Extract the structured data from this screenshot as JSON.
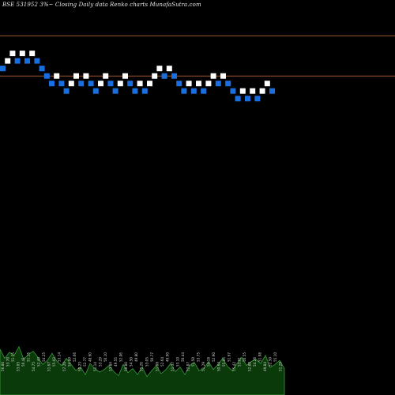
{
  "chart_data": {
    "type": "renko",
    "title": "BSE 531952  3%~  Closing Daily data  Renko  charts MunafaSutra.com",
    "ylim": [
      40.4,
      53.0
    ],
    "reference_lines": [
      52.2,
      50.6
    ],
    "colors": {
      "background": "#000000",
      "up_brick": "#ffffff",
      "down_brick": "#1a6fe0",
      "reference_line": "#a0522d",
      "volume_fill": "#0a3a0a",
      "volume_outline": "#3c9a3c",
      "volume_label": "#d0d0d0"
    },
    "bricks": [
      {
        "dir": "down",
        "value": 50.9
      },
      {
        "dir": "up",
        "value": 51.2
      },
      {
        "dir": "up",
        "value": 51.5
      },
      {
        "dir": "down",
        "value": 51.2
      },
      {
        "dir": "up",
        "value": 51.5
      },
      {
        "dir": "down",
        "value": 51.2
      },
      {
        "dir": "up",
        "value": 51.5
      },
      {
        "dir": "down",
        "value": 51.2
      },
      {
        "dir": "down",
        "value": 50.9
      },
      {
        "dir": "down",
        "value": 50.6
      },
      {
        "dir": "down",
        "value": 50.3
      },
      {
        "dir": "up",
        "value": 50.6
      },
      {
        "dir": "down",
        "value": 50.3
      },
      {
        "dir": "down",
        "value": 50.0
      },
      {
        "dir": "up",
        "value": 50.3
      },
      {
        "dir": "up",
        "value": 50.6
      },
      {
        "dir": "down",
        "value": 50.3
      },
      {
        "dir": "up",
        "value": 50.6
      },
      {
        "dir": "down",
        "value": 50.3
      },
      {
        "dir": "down",
        "value": 50.0
      },
      {
        "dir": "up",
        "value": 50.3
      },
      {
        "dir": "up",
        "value": 50.6
      },
      {
        "dir": "down",
        "value": 50.3
      },
      {
        "dir": "down",
        "value": 50.0
      },
      {
        "dir": "up",
        "value": 50.3
      },
      {
        "dir": "up",
        "value": 50.6
      },
      {
        "dir": "down",
        "value": 50.3
      },
      {
        "dir": "down",
        "value": 50.0
      },
      {
        "dir": "up",
        "value": 50.3
      },
      {
        "dir": "down",
        "value": 50.0
      },
      {
        "dir": "up",
        "value": 50.3
      },
      {
        "dir": "up",
        "value": 50.6
      },
      {
        "dir": "up",
        "value": 50.9
      },
      {
        "dir": "down",
        "value": 50.6
      },
      {
        "dir": "up",
        "value": 50.9
      },
      {
        "dir": "down",
        "value": 50.6
      },
      {
        "dir": "down",
        "value": 50.3
      },
      {
        "dir": "down",
        "value": 50.0
      },
      {
        "dir": "up",
        "value": 50.3
      },
      {
        "dir": "down",
        "value": 50.0
      },
      {
        "dir": "up",
        "value": 50.3
      },
      {
        "dir": "down",
        "value": 50.0
      },
      {
        "dir": "up",
        "value": 50.3
      },
      {
        "dir": "up",
        "value": 50.6
      },
      {
        "dir": "down",
        "value": 50.3
      },
      {
        "dir": "up",
        "value": 50.6
      },
      {
        "dir": "down",
        "value": 50.3
      },
      {
        "dir": "down",
        "value": 50.0
      },
      {
        "dir": "down",
        "value": 49.7
      },
      {
        "dir": "up",
        "value": 50.0
      },
      {
        "dir": "down",
        "value": 49.7
      },
      {
        "dir": "up",
        "value": 50.0
      },
      {
        "dir": "down",
        "value": 49.7
      },
      {
        "dir": "up",
        "value": 50.0
      },
      {
        "dir": "up",
        "value": 50.3
      },
      {
        "dir": "down",
        "value": 50.0
      }
    ],
    "volume_bars": [
      90,
      72,
      84,
      78,
      95,
      70,
      80,
      86,
      74,
      60,
      68,
      82,
      66,
      58,
      72,
      60,
      48,
      55,
      40,
      62,
      52,
      45,
      50,
      58,
      46,
      38,
      60,
      44,
      52,
      40,
      55,
      36,
      48,
      58,
      42,
      50,
      62,
      46,
      55,
      40,
      58,
      64,
      48,
      52,
      66,
      50,
      60,
      72,
      56,
      48,
      62,
      74,
      58,
      66,
      70,
      62,
      78,
      54,
      60,
      68,
      52
    ],
    "volume_labels": [
      "56.80",
      "53.70",
      "51.55",
      "53.05",
      "56.41",
      "51.15",
      "54.75",
      "52.40",
      "54.25",
      "51.67",
      "55.02",
      "53.14",
      "57.20",
      "54.80",
      "52.66",
      "50.25",
      "52.77",
      "48.60",
      "51.14",
      "53.29",
      "50.10",
      "53.84",
      "49.55",
      "52.06",
      "50.80",
      "54.50",
      "49.80",
      "51.26",
      "53.05",
      "50.77",
      "51.08",
      "52.64",
      "49.90",
      "51.37",
      "53.10",
      "50.44",
      "52.87",
      "51.50",
      "53.75",
      "51.29",
      "54.18",
      "52.90",
      "50.64",
      "55.05",
      "51.67",
      "55.42",
      "53.01",
      "50.55",
      "52.80",
      "54.26",
      "51.98",
      "49.84",
      "52.50",
      "55.10",
      "51.29"
    ]
  }
}
